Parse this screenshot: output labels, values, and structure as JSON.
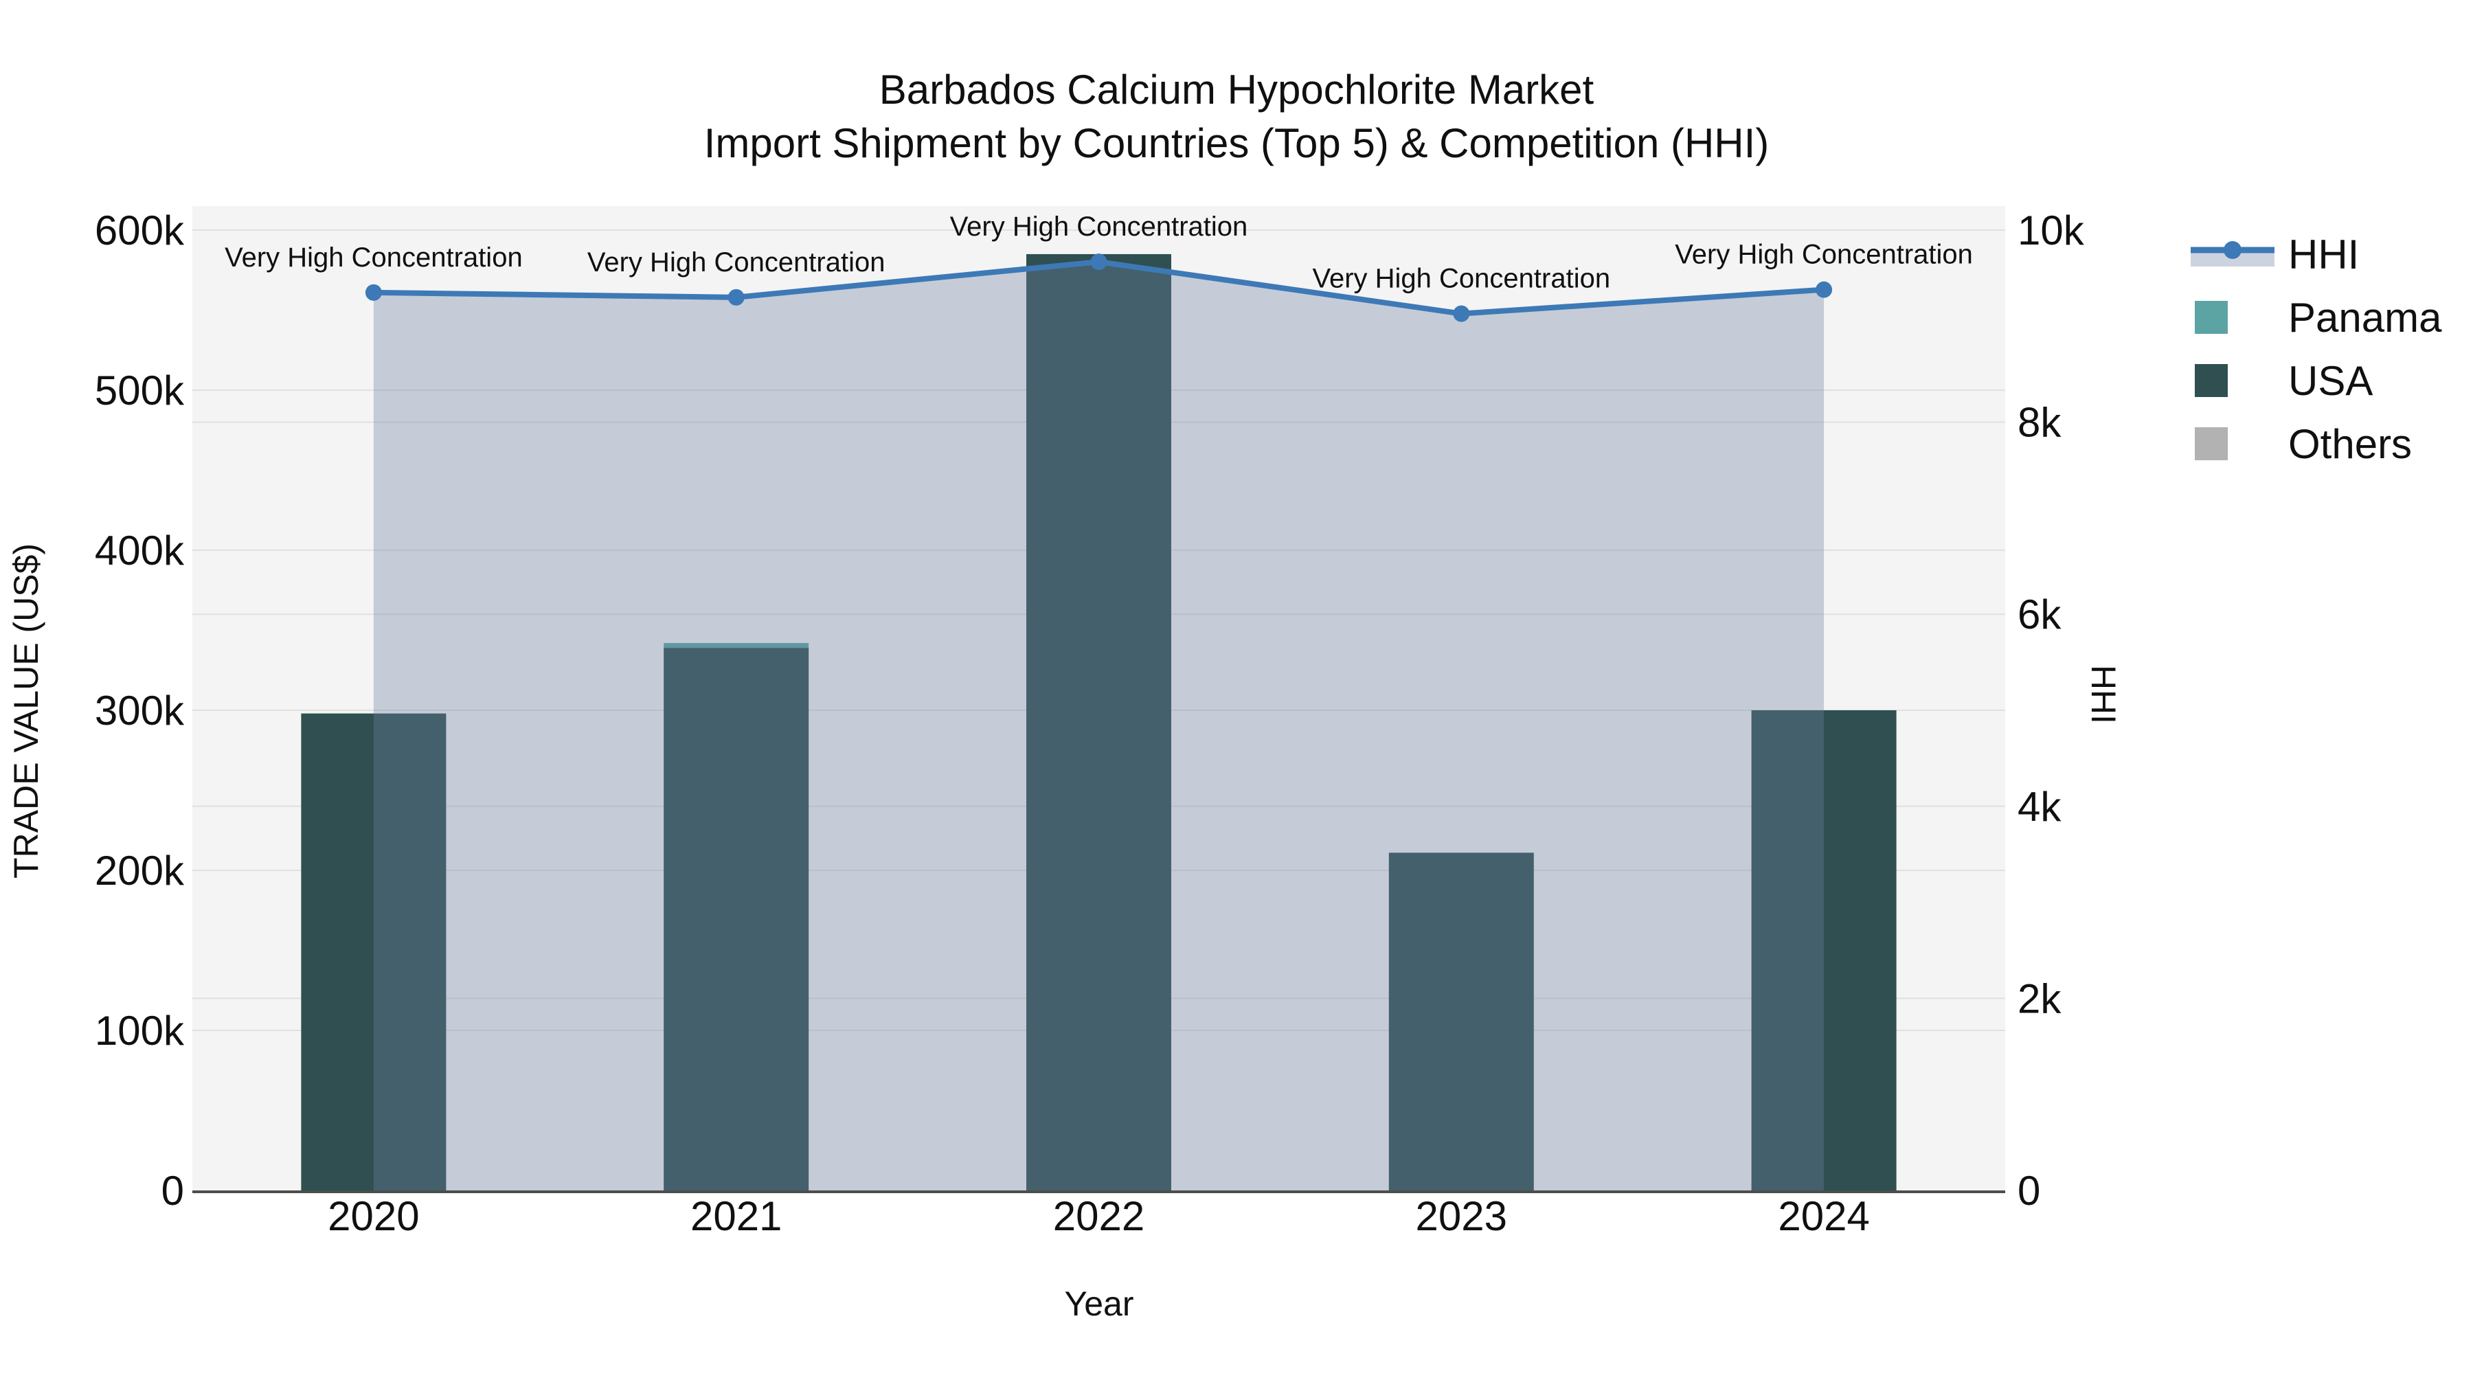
{
  "title": {
    "line1": "Barbados Calcium Hypochlorite Market",
    "line2": "Import Shipment by Countries (Top 5) & Competition (HHI)"
  },
  "axes": {
    "left": {
      "title": "TRADE VALUE (US$)"
    },
    "right": {
      "title": "HHI"
    },
    "x": {
      "title": "Year"
    }
  },
  "legend": {
    "items": [
      {
        "label": "HHI",
        "type": "line",
        "color": "#3d79b6"
      },
      {
        "label": "Panama",
        "type": "square",
        "color": "#5ca3a4"
      },
      {
        "label": "USA",
        "type": "square",
        "color": "#2f4f50"
      },
      {
        "label": "Others",
        "type": "square",
        "color": "#b2b2b2"
      }
    ]
  },
  "colors": {
    "plot_bg": "#f4f4f4",
    "gridline": "#e0e0e0",
    "axis_line": "#4d4d4d",
    "hhi_line": "#3d79b6",
    "hhi_area_fill": "rgba(110,130,160,0.35)",
    "text": "#101010"
  },
  "chart_data": {
    "type": "combo: stacked bar + line with area fill",
    "title": "Barbados Calcium Hypochlorite Market — Import Shipment by Countries (Top 5) & Competition (HHI)",
    "categories": [
      "2020",
      "2021",
      "2022",
      "2023",
      "2024"
    ],
    "series": [
      {
        "name": "USA",
        "type": "bar",
        "axis": "left",
        "color": "#2f4f50",
        "values": [
          298000,
          339000,
          585000,
          211000,
          300000
        ]
      },
      {
        "name": "Panama",
        "type": "bar",
        "axis": "left",
        "color": "#5ca3a4",
        "values": [
          0,
          3000,
          0,
          0,
          0
        ]
      },
      {
        "name": "Others",
        "type": "bar",
        "axis": "left",
        "color": "#b2b2b2",
        "values": [
          0,
          0,
          0,
          0,
          0
        ]
      },
      {
        "name": "HHI",
        "type": "line",
        "axis": "right",
        "color": "#3d79b6",
        "area": true,
        "values": [
          9350,
          9300,
          9670,
          9130,
          9380
        ]
      }
    ],
    "point_annotations": [
      "Very High Concentration",
      "Very High Concentration",
      "Very High Concentration",
      "Very High Concentration",
      "Very High Concentration"
    ],
    "xlabel": "Year",
    "ylabel_left": "TRADE VALUE (US$)",
    "ylabel_right": "HHI",
    "ylim_left": [
      0,
      600000
    ],
    "ylim_right": [
      0,
      10000
    ],
    "yticks_left": {
      "values": [
        0,
        100000,
        200000,
        300000,
        400000,
        500000,
        600000
      ],
      "labels": [
        "0",
        "100k",
        "200k",
        "300k",
        "400k",
        "500k",
        "600k"
      ]
    },
    "yticks_right": {
      "values": [
        0,
        2000,
        4000,
        6000,
        8000,
        10000
      ],
      "labels": [
        "0",
        "2k",
        "4k",
        "6k",
        "8k",
        "10k"
      ]
    },
    "grid": true,
    "legend_position": "right"
  }
}
